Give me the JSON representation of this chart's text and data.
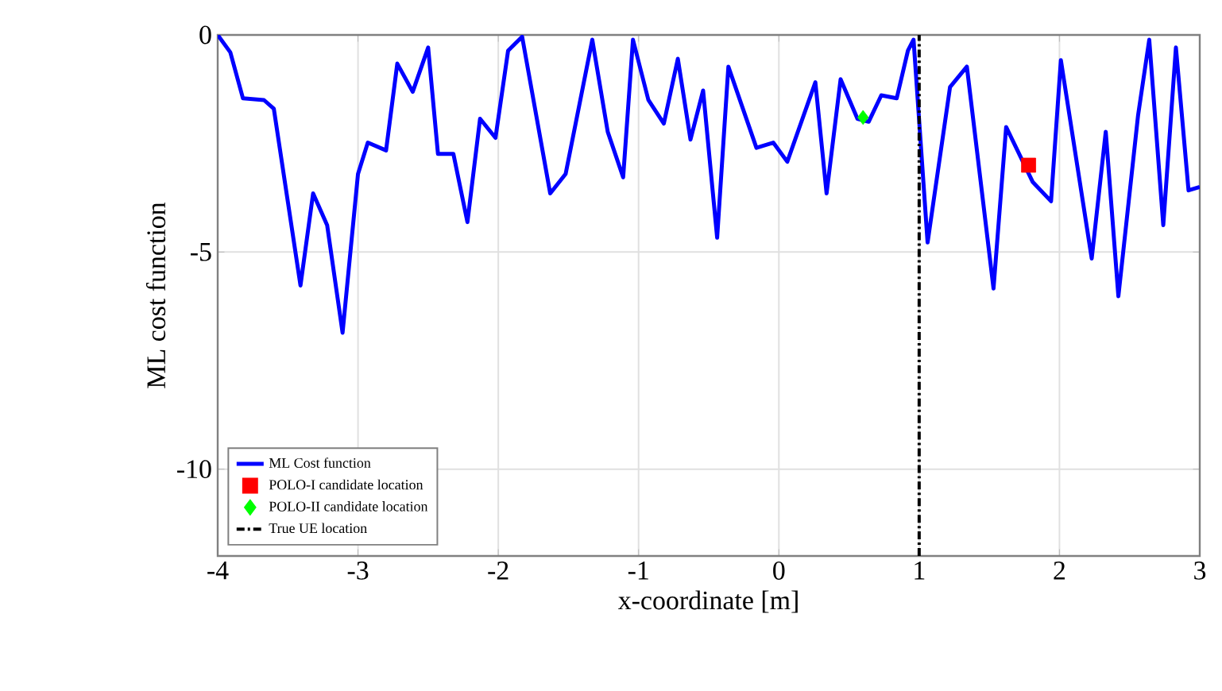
{
  "chart_data": {
    "type": "line",
    "xlabel": "x-coordinate [m]",
    "ylabel": "ML cost function",
    "xlim": [
      -4,
      3
    ],
    "ylim": [
      -12,
      0
    ],
    "xticks": [
      -4,
      -3,
      -2,
      -1,
      0,
      1,
      2,
      3
    ],
    "yticks": [
      -10,
      -5,
      0
    ],
    "grid": true,
    "legend": "bottom left",
    "series": [
      {
        "name": "ML Cost function",
        "type": "line",
        "color": "#0000ff",
        "marker": "none",
        "line_style": "solid",
        "x": [
          -4,
          -3.91,
          -3.82,
          -3.67,
          -3.6,
          -3.41,
          -3.32,
          -3.22,
          -3.11,
          -3.0,
          -2.93,
          -2.8,
          -2.72,
          -2.61,
          -2.5,
          -2.43,
          -2.32,
          -2.22,
          -2.13,
          -2.02,
          -1.93,
          -1.83,
          -1.63,
          -1.52,
          -1.33,
          -1.22,
          -1.11,
          -1.04,
          -0.93,
          -0.82,
          -0.72,
          -0.63,
          -0.54,
          -0.44,
          -0.36,
          -0.16,
          -0.04,
          0.06,
          0.26,
          0.34,
          0.44,
          0.56,
          0.64,
          0.73,
          0.84,
          0.92,
          0.96,
          1.06,
          1.22,
          1.34,
          1.53,
          1.62,
          1.81,
          1.94,
          2.01,
          2.23,
          2.33,
          2.42,
          2.56,
          2.64,
          2.74,
          2.83,
          2.92,
          3
        ],
        "values": [
          0,
          -0.4,
          -1.46,
          -1.5,
          -1.7,
          -5.77,
          -3.65,
          -4.38,
          -6.86,
          -3.2,
          -2.48,
          -2.66,
          -0.66,
          -1.31,
          -0.29,
          -2.74,
          -2.74,
          -4.31,
          -1.93,
          -2.37,
          -0.36,
          -0.04,
          -3.65,
          -3.2,
          -0.11,
          -2.23,
          -3.28,
          -0.11,
          -1.5,
          -2.04,
          -0.55,
          -2.41,
          -1.28,
          -4.67,
          -0.73,
          -2.6,
          -2.48,
          -2.92,
          -1.09,
          -3.65,
          -1.02,
          -1.93,
          -2.0,
          -1.39,
          -1.46,
          -0.36,
          -0.11,
          -4.78,
          -1.2,
          -0.73,
          -5.84,
          -2.12,
          -3.39,
          -3.83,
          -0.58,
          -5.15,
          -2.23,
          -6.02,
          -1.86,
          -0.11,
          -4.38,
          -0.29,
          -3.58,
          -3.5
        ]
      },
      {
        "name": "POLO-I candidate location",
        "type": "scatter",
        "color": "#ff0000",
        "marker": "square",
        "x": [
          1.78
        ],
        "values": [
          -3.0
        ]
      },
      {
        "name": "POLO-II candidate location",
        "type": "scatter",
        "color": "#00ff00",
        "marker": "diamond",
        "x": [
          0.6
        ],
        "values": [
          -1.9
        ]
      },
      {
        "name": "True UE location",
        "type": "line",
        "color": "#000000",
        "marker": "none",
        "line_style": "dashdotted",
        "x": [
          1,
          1
        ],
        "values": [
          -12,
          0
        ]
      }
    ]
  }
}
